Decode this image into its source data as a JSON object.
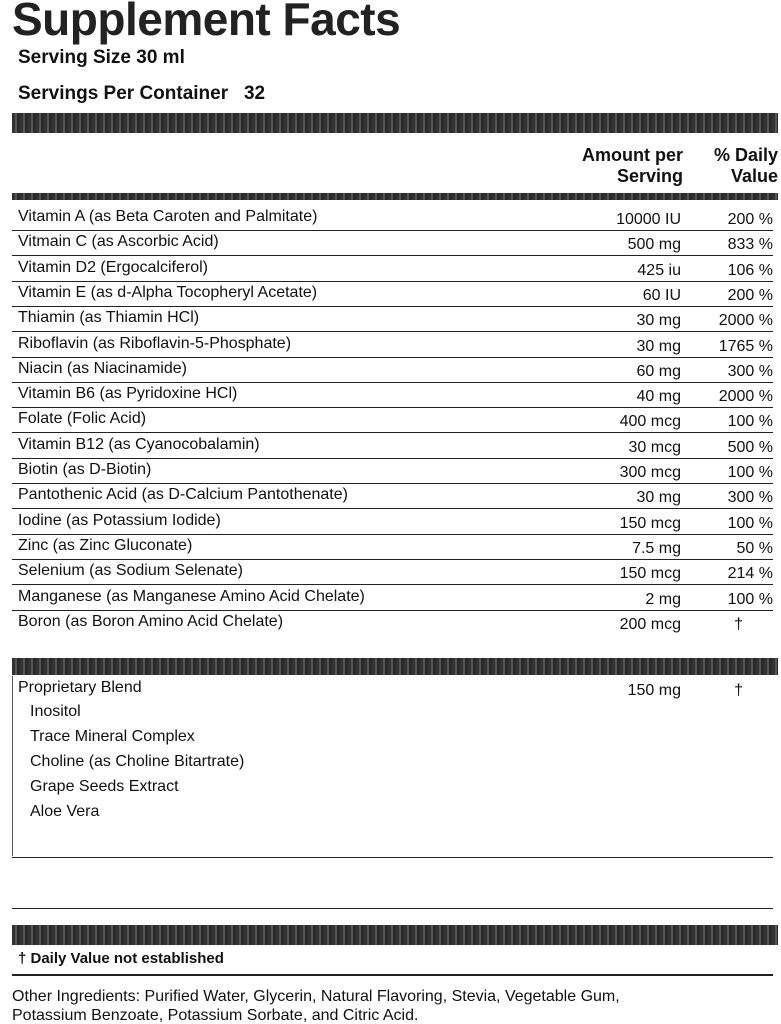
{
  "title": "Supplement Facts",
  "serving_size": "Serving Size 30 ml",
  "servings_label": "Servings Per Container",
  "servings_value": "32",
  "columns": {
    "amount_1": "Amount per",
    "amount_2": "Serving",
    "dv_1": "% Daily",
    "dv_2": "Value"
  },
  "nutrients": [
    {
      "name": "Vitamin A (as Beta Caroten and Palmitate)",
      "amount": "10000 IU",
      "dv": "200 %"
    },
    {
      "name": "Vitmain C (as Ascorbic Acid)",
      "amount": "500 mg",
      "dv": "833 %"
    },
    {
      "name": "Vitamin D2 (Ergocalciferol)",
      "amount": "425 iu",
      "dv": "106 %"
    },
    {
      "name": "Vitamin E (as d-Alpha Tocopheryl Acetate)",
      "amount": "60 IU",
      "dv": "200 %"
    },
    {
      "name": "Thiamin (as Thiamin HCl)",
      "amount": "30 mg",
      "dv": "2000 %"
    },
    {
      "name": "Riboflavin (as Riboflavin-5-Phosphate)",
      "amount": "30 mg",
      "dv": "1765 %"
    },
    {
      "name": "Niacin (as Niacinamide)",
      "amount": "60 mg",
      "dv": "300 %"
    },
    {
      "name": "Vitamin B6 (as Pyridoxine HCl)",
      "amount": "40 mg",
      "dv": "2000 %"
    },
    {
      "name": "Folate (Folic Acid)",
      "amount": "400 mcg",
      "dv": "100 %"
    },
    {
      "name": "Vitamin B12 (as Cyanocobalamin)",
      "amount": "30 mcg",
      "dv": "500 %"
    },
    {
      "name": "Biotin (as D-Biotin)",
      "amount": "300 mcg",
      "dv": "100 %"
    },
    {
      "name": "Pantothenic Acid (as D-Calcium Pantothenate)",
      "amount": "30 mg",
      "dv": "300 %"
    },
    {
      "name": "Iodine (as Potassium Iodide)",
      "amount": "150 mcg",
      "dv": "100 %"
    },
    {
      "name": "Zinc (as Zinc Gluconate)",
      "amount": "7.5 mg",
      "dv": "50 %"
    },
    {
      "name": "Selenium (as Sodium Selenate)",
      "amount": "150 mcg",
      "dv": "214 %"
    },
    {
      "name": "Manganese (as Manganese Amino Acid Chelate)",
      "amount": "2 mg",
      "dv": "100 %"
    },
    {
      "name": "Boron (as Boron Amino Acid Chelate)",
      "amount": "200 mcg",
      "dv": "†"
    }
  ],
  "blend": {
    "name": "Proprietary Blend",
    "amount": "150 mg",
    "dv": "†",
    "items": [
      "Inositol",
      "Trace Mineral Complex",
      "Choline (as Choline Bitartrate)",
      "Grape Seeds Extract",
      "Aloe Vera"
    ]
  },
  "footnote": "† Daily Value not established",
  "other_ingredients": [
    "Other Ingredients: Purified Water, Glycerin, Natural Flavoring, Stevia, Vegetable Gum,",
    "Potassium Benzoate, Potassium Sorbate, and Citric Acid."
  ]
}
